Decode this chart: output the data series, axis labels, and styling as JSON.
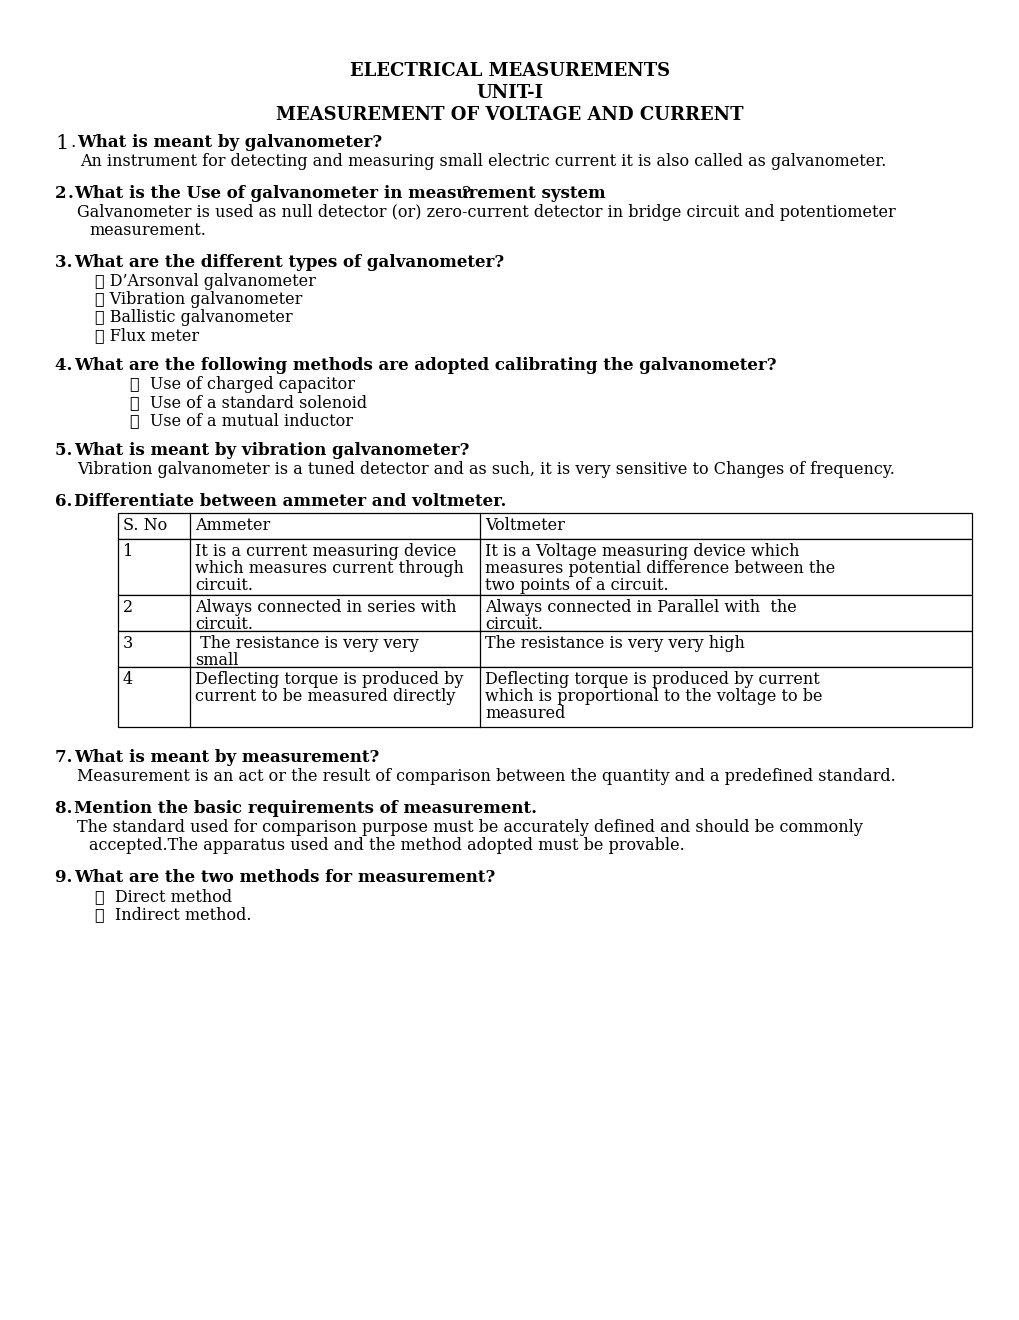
{
  "bg_color": "#ffffff",
  "title_lines": [
    "ELECTRICAL MEASUREMENTS",
    "UNIT-I",
    "MEASUREMENT OF VOLTAGE AND CURRENT"
  ],
  "q1_bold": "What is meant by galvanometer?",
  "q1_answer": "An instrument for detecting and measuring small electric current it is also called as galvanometer.",
  "q2_bold": "What is the Use of galvanometer in measurement system",
  "q2_answer_line1": "Galvanometer is used as null detector (or) zero-current detector in bridge circuit and potentiometer",
  "q2_answer_line2": "   measurement.",
  "q3_bold": "What are the different types of galvanometer?",
  "q3_bullets": [
    "D’Arsonval galvanometer",
    "Vibration galvanometer",
    "Ballistic galvanometer",
    "Flux meter"
  ],
  "q4_bold": "What are the following methods are adopted calibrating the galvanometer?",
  "q4_bullets": [
    "Use of charged capacitor",
    "Use of a standard solenoid",
    "Use of a mutual inductor"
  ],
  "q5_bold": "What is meant by vibration galvanometer?",
  "q5_answer": "Vibration galvanometer is a tuned detector and as such, it is very sensitive to Changes of frequency.",
  "q6_bold": "Differentiate between ammeter and voltmeter.",
  "table_headers": [
    "S. No",
    "Ammeter",
    "Voltmeter"
  ],
  "table_rows": [
    [
      "1",
      "It is a current measuring device\nwhich measures current through\ncircuit.",
      "It is a Voltage measuring device which\nmeasures potential difference between the\ntwo points of a circuit."
    ],
    [
      "2",
      "Always connected in series with\ncircuit.",
      "Always connected in Parallel with  the\ncircuit."
    ],
    [
      "3",
      " The resistance is very very\nsmall",
      "The resistance is very very high"
    ],
    [
      "4",
      "Deflecting torque is produced by\ncurrent to be measured directly",
      "Deflecting torque is produced by current\nwhich is proportional to the voltage to be\nmeasured"
    ]
  ],
  "q7_bold": "What is meant by measurement?",
  "q7_answer": "Measurement is an act or the result of comparison between the quantity and a predefined standard.",
  "q8_bold": "Mention the basic requirements of measurement.",
  "q8_answer_line1": "The standard used for comparison purpose must be accurately defined and should be commonly",
  "q8_answer_line2": "   accepted.The apparatus used and the method adopted must be provable.",
  "q9_bold": "What are the two methods for measurement?",
  "q9_bullets": [
    "Direct method",
    "Indirect method."
  ],
  "font_family": "DejaVu Serif",
  "fs_title": 13.0,
  "fs_q": 12.0,
  "fs_body": 11.5
}
